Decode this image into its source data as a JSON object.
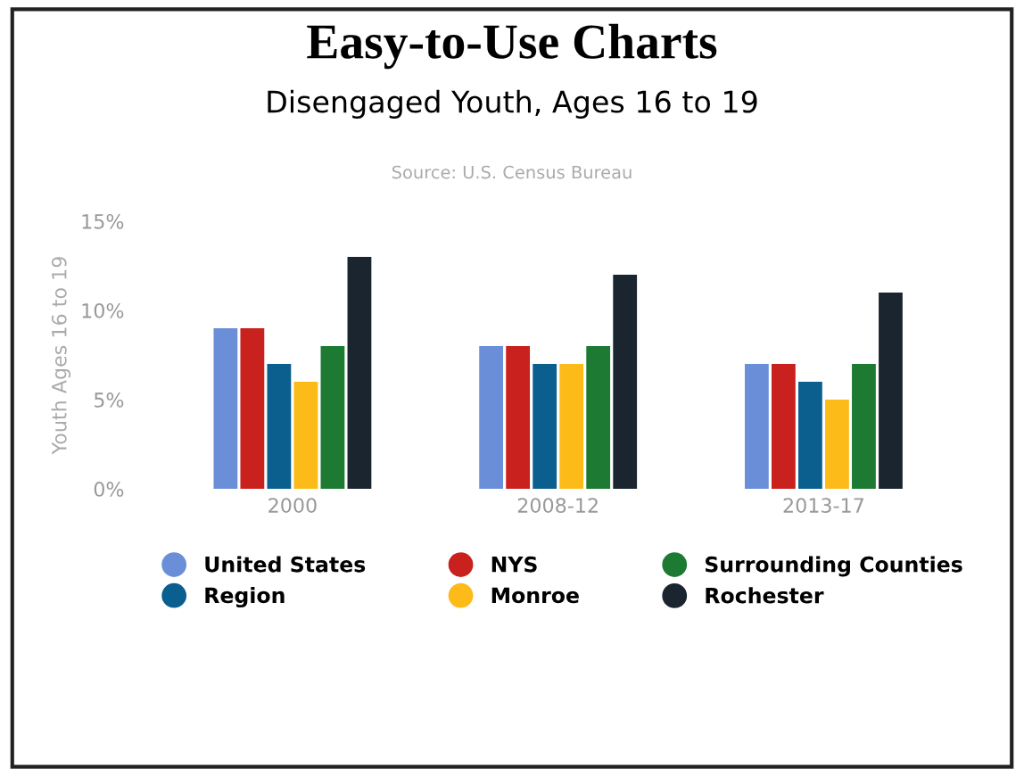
{
  "chart_data": {
    "type": "bar",
    "title": "Easy-to-Use Charts",
    "subtitle": "Disengaged Youth, Ages 16 to 19",
    "annotations": [
      "Source: U.S. Census Bureau"
    ],
    "ylabel": "Youth Ages 16 to 19",
    "categories": [
      "2000",
      "2008-12",
      "2013-17"
    ],
    "series": [
      {
        "name": "United States",
        "color": "#6a8fd8",
        "values": [
          9,
          8,
          7
        ]
      },
      {
        "name": "NYS",
        "color": "#c8211e",
        "values": [
          9,
          8,
          7
        ]
      },
      {
        "name": "Region",
        "color": "#0a5f8f",
        "values": [
          7,
          7,
          6
        ]
      },
      {
        "name": "Monroe",
        "color": "#fdbb1a",
        "values": [
          6,
          7,
          5
        ]
      },
      {
        "name": "Surrounding Counties",
        "color": "#1d7a33",
        "values": [
          8,
          8,
          7
        ]
      },
      {
        "name": "Rochester",
        "color": "#1a2530",
        "values": [
          13,
          12,
          11
        ]
      }
    ],
    "ylim": [
      0,
      15
    ],
    "yticks": [
      {
        "value": 0,
        "label": "0%"
      },
      {
        "value": 5,
        "label": "5%"
      },
      {
        "value": 10,
        "label": "10%"
      },
      {
        "value": 15,
        "label": "15%"
      }
    ],
    "grid": false,
    "legend": "bottom"
  }
}
